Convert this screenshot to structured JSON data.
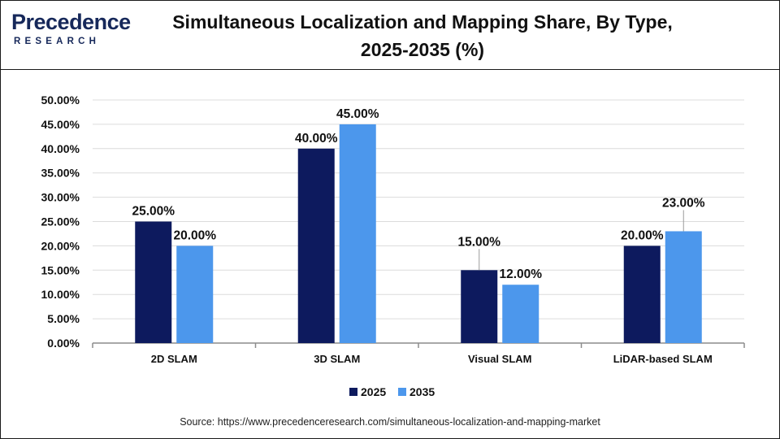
{
  "header": {
    "logo_name": "Precedence",
    "logo_sub": "RESEARCH",
    "title_line1": "Simultaneous Localization and Mapping Share, By Type,",
    "title_line2": "2025-2035 (%)"
  },
  "source": "Source: https://www.precedenceresearch.com/simultaneous-localization-and-mapping-market",
  "colors": {
    "series_2025": "#0d1a5e",
    "series_2035": "#4c97ec",
    "logo": "#16285a"
  },
  "chart_data": {
    "type": "bar",
    "title": "Simultaneous Localization and Mapping Share, By Type, 2025-2035 (%)",
    "categories": [
      "2D SLAM",
      "3D SLAM",
      "Visual SLAM",
      "LiDAR-based SLAM"
    ],
    "series": [
      {
        "name": "2025",
        "values": [
          25,
          40,
          15,
          20
        ],
        "labels": [
          "25.00%",
          "40.00%",
          "15.00%",
          "20.00%"
        ]
      },
      {
        "name": "2035",
        "values": [
          20,
          45,
          12,
          23
        ],
        "labels": [
          "20.00%",
          "45.00%",
          "12.00%",
          "23.00%"
        ]
      }
    ],
    "ylim": [
      0,
      50
    ],
    "yticks": [
      {
        "value": 0,
        "label": "0.00%"
      },
      {
        "value": 5,
        "label": "5.00%"
      },
      {
        "value": 10,
        "label": "10.00%"
      },
      {
        "value": 15,
        "label": "15.00%"
      },
      {
        "value": 20,
        "label": "20.00%"
      },
      {
        "value": 25,
        "label": "25.00%"
      },
      {
        "value": 30,
        "label": "30.00%"
      },
      {
        "value": 35,
        "label": "35.00%"
      },
      {
        "value": 40,
        "label": "40.00%"
      },
      {
        "value": 45,
        "label": "45.00%"
      },
      {
        "value": 50,
        "label": "50.00%"
      }
    ],
    "grid": true,
    "legend": "bottom-center"
  }
}
